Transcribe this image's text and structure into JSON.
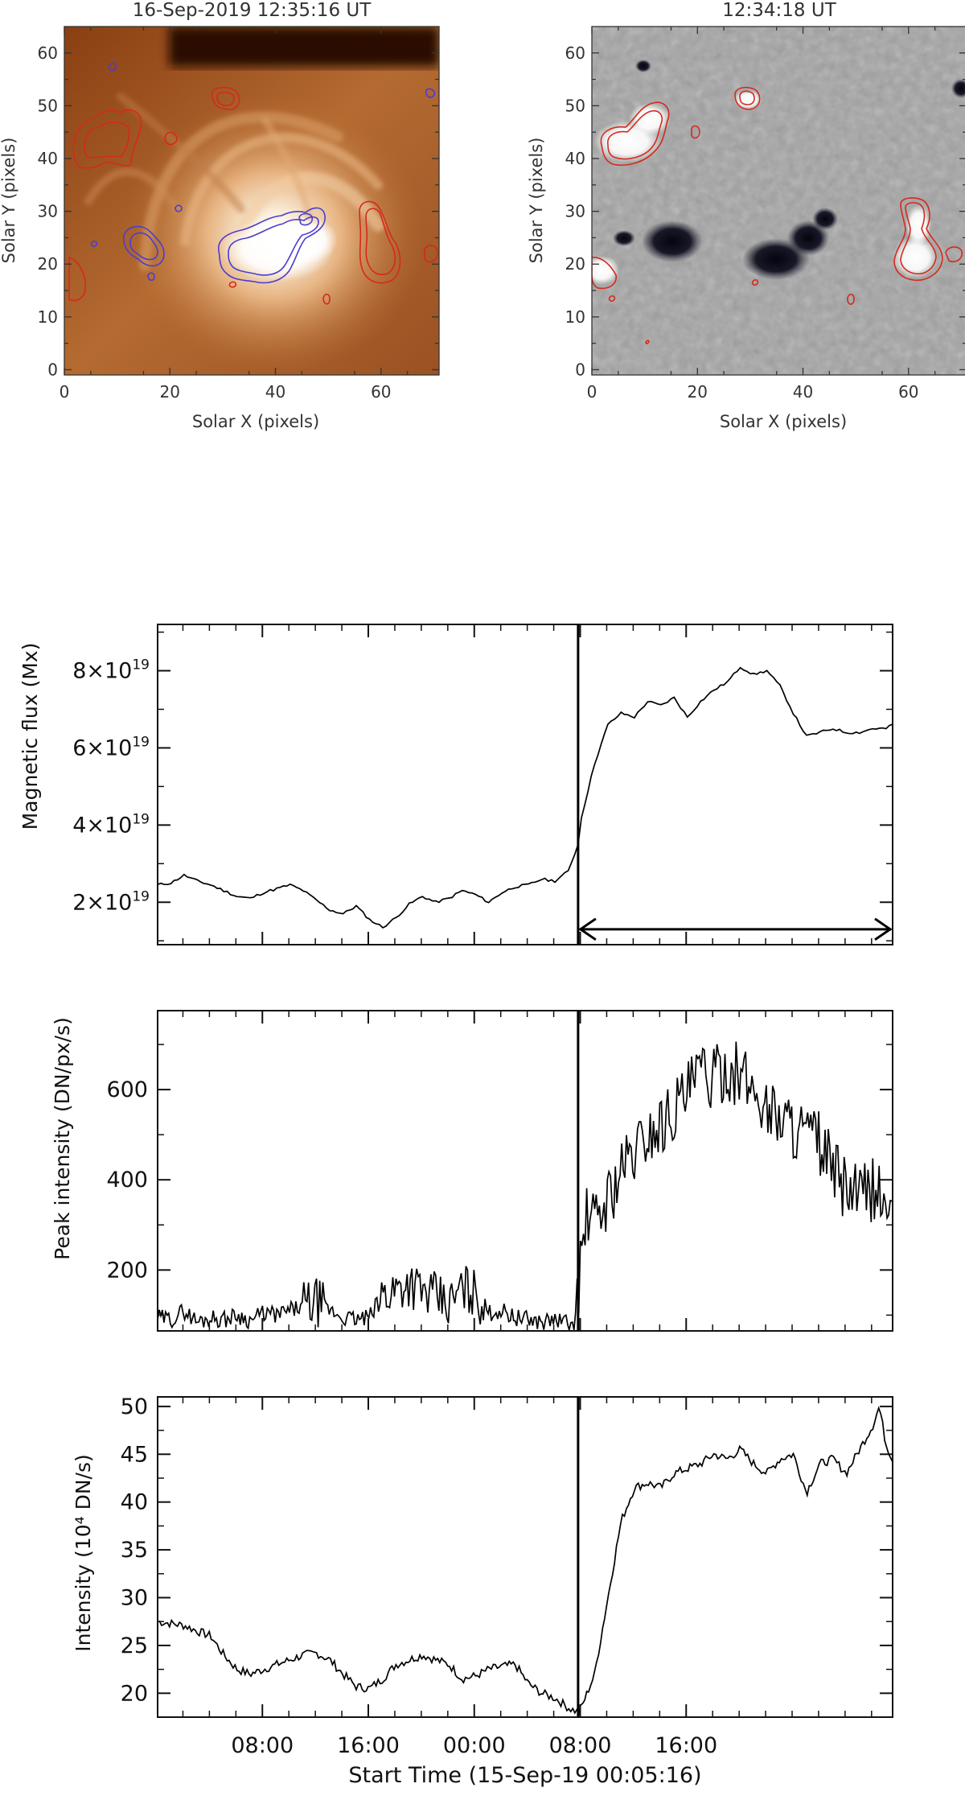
{
  "chart_data": [
    {
      "type": "heatmap",
      "title": "16-Sep-2019 12:35:16 UT",
      "xlabel": "Solar X (pixels)",
      "ylabel": "Solar Y (pixels)",
      "xlim": [
        0,
        71
      ],
      "ylim": [
        -1,
        65
      ],
      "xticks": [
        "0",
        "20",
        "40",
        "60"
      ],
      "yticks": [
        "0",
        "10",
        "20",
        "30",
        "40",
        "50",
        "60"
      ],
      "background": "EUV intensity image (brown-orange colour table)",
      "contours": [
        {
          "polarity": "positive",
          "color": "#d42a1c"
        },
        {
          "polarity": "negative",
          "color": "#4a3ed0"
        }
      ]
    },
    {
      "type": "heatmap",
      "title": "12:34:18 UT",
      "xlabel": "Solar X (pixels)",
      "ylabel": "Solar Y (pixels)",
      "xlim": [
        0,
        71
      ],
      "ylim": [
        -1,
        65
      ],
      "xticks": [
        "0",
        "20",
        "40",
        "60"
      ],
      "yticks": [
        "0",
        "10",
        "20",
        "30",
        "40",
        "50",
        "60"
      ],
      "background": "line-of-sight magnetogram (grey scale)",
      "contours": [
        {
          "polarity": "positive",
          "color": "#d42a1c"
        },
        {
          "polarity": "negative",
          "color": "#4a3ed0"
        }
      ]
    },
    {
      "type": "line",
      "ylabel": "Magnetic flux (Mx)",
      "ylim": [
        9e+18,
        9.2e+19
      ],
      "yticks": [
        {
          "value": 2e+19,
          "mant": "2",
          "exp": "19"
        },
        {
          "value": 4e+19,
          "mant": "4",
          "exp": "19"
        },
        {
          "value": 6e+19,
          "mant": "6",
          "exp": "19"
        },
        {
          "value": 8e+19,
          "mant": "8",
          "exp": "19"
        }
      ],
      "annotation": {
        "type": "double-arrow",
        "y": 1.3e+19,
        "from_hours": 31.75,
        "to_hours": 55.5
      },
      "series": [
        {
          "x_hours": [
            0,
            1,
            2,
            3,
            4,
            5,
            6,
            7,
            8,
            9,
            10,
            11,
            12,
            13,
            14,
            15,
            16,
            17,
            18,
            19,
            20,
            21,
            22,
            23,
            24,
            25,
            26,
            27,
            28,
            29,
            30,
            31,
            31.75,
            32,
            33,
            34,
            35,
            36,
            37,
            38,
            39,
            40,
            41,
            42,
            43,
            44,
            45,
            46,
            47,
            48,
            49,
            50,
            51,
            52,
            53,
            54,
            55,
            55.5
          ],
          "values": [
            2.45e+19,
            2.5e+19,
            2.7e+19,
            2.55e+19,
            2.45e+19,
            2.3e+19,
            2.15e+19,
            2.1e+19,
            2.25e+19,
            2.35e+19,
            2.45e+19,
            2.3e+19,
            2.05e+19,
            1.8e+19,
            1.7e+19,
            1.9e+19,
            1.55e+19,
            1.35e+19,
            1.6e+19,
            1.95e+19,
            2.15e+19,
            2e+19,
            2.1e+19,
            2.3e+19,
            2.2e+19,
            2e+19,
            2.25e+19,
            2.4e+19,
            2.45e+19,
            2.6e+19,
            2.55e+19,
            2.8e+19,
            3.5e+19,
            4.2e+19,
            5.6e+19,
            6.6e+19,
            6.9e+19,
            6.8e+19,
            7.2e+19,
            7.1e+19,
            7.3e+19,
            6.8e+19,
            7.2e+19,
            7.5e+19,
            7.7e+19,
            8.1e+19,
            7.9e+19,
            8e+19,
            7.6e+19,
            6.9e+19,
            6.3e+19,
            6.4e+19,
            6.5e+19,
            6.4e+19,
            6.4e+19,
            6.5e+19,
            6.5e+19,
            6.6e+19
          ]
        }
      ]
    },
    {
      "type": "line",
      "ylabel": "Peak intensity (DN/px/s)",
      "ylim": [
        65,
        775
      ],
      "yticks": [
        {
          "value": 200,
          "label": "200"
        },
        {
          "value": 400,
          "label": "400"
        },
        {
          "value": 600,
          "label": "600"
        }
      ],
      "series": [
        {
          "x_hours": [
            0,
            1,
            2,
            3,
            4,
            5,
            6,
            7,
            8,
            9,
            10,
            11,
            12,
            13,
            14,
            15,
            16,
            17,
            18,
            19,
            20,
            21,
            22,
            23,
            24,
            25,
            26,
            27,
            28,
            29,
            30,
            31,
            31.5,
            32,
            32.5,
            33,
            34,
            35,
            36,
            37,
            38,
            39,
            40,
            41,
            42,
            43,
            44,
            45,
            46,
            47,
            48,
            49,
            50,
            51,
            52,
            53,
            54,
            55,
            55.5
          ],
          "values": [
            95,
            90,
            110,
            85,
            95,
            90,
            100,
            88,
            105,
            100,
            110,
            120,
            130,
            110,
            95,
            90,
            95,
            145,
            160,
            175,
            150,
            140,
            120,
            160,
            150,
            105,
            110,
            95,
            90,
            85,
            90,
            82,
            75,
            240,
            330,
            300,
            360,
            420,
            460,
            500,
            520,
            560,
            590,
            640,
            620,
            650,
            630,
            600,
            560,
            540,
            520,
            500,
            480,
            420,
            380,
            360,
            380,
            350,
            300
          ]
        }
      ]
    },
    {
      "type": "line",
      "xlabel": "Start Time (15-Sep-19 00:05:16)",
      "ylabel": "Intensity (10⁴ DN/s)",
      "ylim": [
        17.5,
        51
      ],
      "xticks": [
        {
          "hours": 7.91,
          "label": "08:00"
        },
        {
          "hours": 15.91,
          "label": "16:00"
        },
        {
          "hours": 23.91,
          "label": "00:00"
        },
        {
          "hours": 31.91,
          "label": "08:00"
        },
        {
          "hours": 39.91,
          "label": "16:00"
        }
      ],
      "yticks": [
        {
          "value": 20,
          "label": "20"
        },
        {
          "value": 25,
          "label": "25"
        },
        {
          "value": 30,
          "label": "30"
        },
        {
          "value": 35,
          "label": "35"
        },
        {
          "value": 40,
          "label": "40"
        },
        {
          "value": 45,
          "label": "45"
        },
        {
          "value": 50,
          "label": "50"
        }
      ],
      "series": [
        {
          "x_hours": [
            0,
            1,
            2,
            3,
            4,
            5,
            6,
            7,
            8,
            9,
            10,
            11,
            12,
            13,
            14,
            15,
            16,
            17,
            18,
            19,
            20,
            21,
            22,
            23,
            24,
            25,
            26,
            27,
            28,
            29,
            30,
            31,
            31.75,
            32,
            33,
            34,
            35,
            36,
            37,
            38,
            39,
            40,
            41,
            42,
            43,
            44,
            45,
            46,
            47,
            48,
            49,
            50,
            51,
            52,
            53,
            54,
            54.5,
            55,
            55.5
          ],
          "values": [
            27.5,
            27.3,
            27.1,
            26.5,
            26.0,
            24.0,
            22.5,
            22.0,
            22.5,
            23.0,
            23.5,
            24.0,
            24.2,
            23.5,
            22.0,
            20.7,
            20.5,
            21.5,
            23.0,
            23.5,
            24.0,
            23.5,
            23.0,
            21.5,
            21.8,
            22.5,
            22.8,
            23.0,
            21.0,
            20.0,
            19.5,
            18.5,
            18.0,
            18.5,
            22.0,
            30.0,
            38.0,
            41.5,
            42.0,
            41.5,
            43.0,
            43.5,
            44.0,
            45.0,
            44.5,
            45.5,
            44.0,
            43.0,
            44.5,
            45.0,
            41.0,
            44.0,
            44.5,
            43.0,
            45.5,
            48.0,
            50.0,
            46.0,
            44.5
          ]
        }
      ]
    }
  ],
  "event_marker_hours": 31.75
}
